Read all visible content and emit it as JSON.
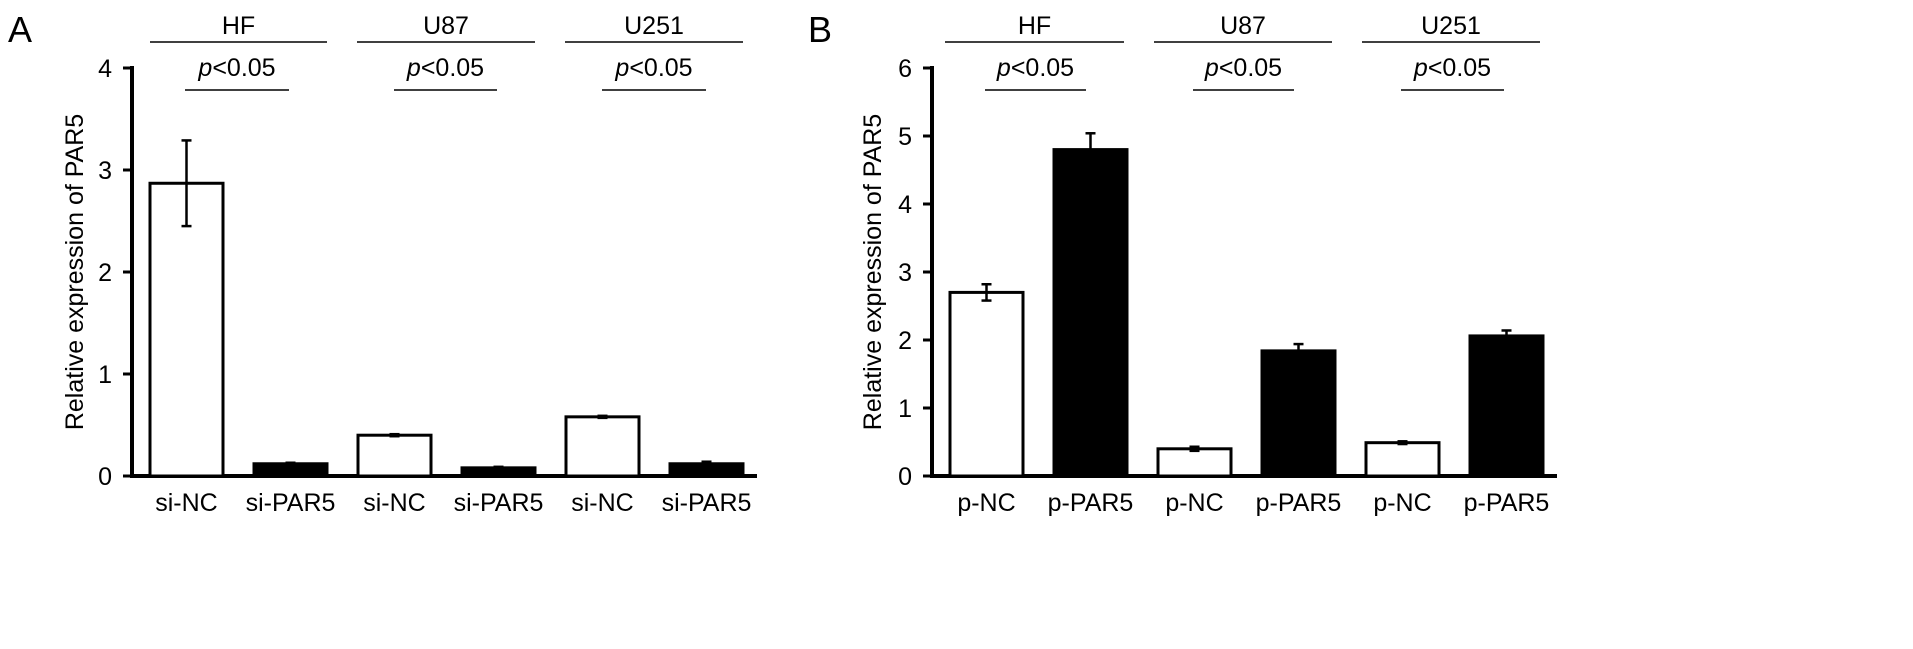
{
  "panels": [
    "A",
    "B"
  ],
  "chart_data": [
    {
      "type": "bar",
      "panel": "A",
      "ylabel": "Relative expression of PAR5",
      "ylim": [
        0,
        4
      ],
      "yticks": [
        0,
        1,
        2,
        3,
        4
      ],
      "categories": [
        "si-NC",
        "si-PAR5",
        "si-NC",
        "si-PAR5",
        "si-NC",
        "si-PAR5"
      ],
      "values": [
        2.87,
        0.12,
        0.4,
        0.08,
        0.58,
        0.12
      ],
      "errors": [
        0.42,
        0.01,
        0.01,
        0.01,
        0.01,
        0.02
      ],
      "fills": [
        "#ffffff",
        "#000000",
        "#ffffff",
        "#000000",
        "#ffffff",
        "#000000"
      ],
      "groups": [
        {
          "label": "HF",
          "pvalue": "<0.05"
        },
        {
          "label": "U87",
          "pvalue": "<0.05"
        },
        {
          "label": "U251",
          "pvalue": "<0.05"
        }
      ]
    },
    {
      "type": "bar",
      "panel": "B",
      "ylabel": "Relative expression of PAR5",
      "ylim": [
        0,
        6
      ],
      "yticks": [
        0,
        1,
        2,
        3,
        4,
        5,
        6
      ],
      "categories": [
        "p-NC",
        "p-PAR5",
        "p-NC",
        "p-PAR5",
        "p-NC",
        "p-PAR5"
      ],
      "values": [
        2.7,
        4.8,
        0.4,
        1.84,
        0.49,
        2.06
      ],
      "errors": [
        0.12,
        0.24,
        0.03,
        0.1,
        0.02,
        0.08
      ],
      "fills": [
        "#ffffff",
        "#000000",
        "#ffffff",
        "#000000",
        "#ffffff",
        "#000000"
      ],
      "groups": [
        {
          "label": "HF",
          "pvalue": "<0.05"
        },
        {
          "label": "U87",
          "pvalue": "<0.05"
        },
        {
          "label": "U251",
          "pvalue": "<0.05"
        }
      ]
    }
  ]
}
